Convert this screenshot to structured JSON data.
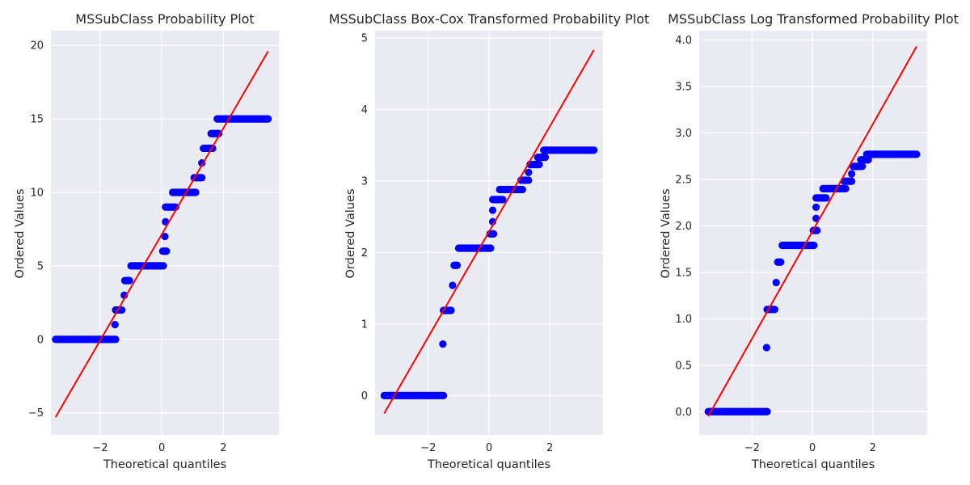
{
  "figure": {
    "background": "#ffffff",
    "panel_background": "#eaeaf2",
    "grid_color": "#ffffff",
    "marker_color": "#0000ff",
    "line_color": "#ff0000"
  },
  "chart_data": [
    {
      "type": "scatter",
      "title": "MSSubClass Probability Plot",
      "xlabel": "Theoretical quantiles",
      "ylabel": "Ordered Values",
      "xlim": [
        -3.6,
        3.8
      ],
      "ylim": [
        -6.5,
        21
      ],
      "xticks": [
        -2,
        0,
        2
      ],
      "yticks": [
        -5,
        0,
        5,
        10,
        15,
        20
      ],
      "grid": true,
      "fit_line": {
        "x": [
          -3.45,
          3.45
        ],
        "y": [
          -5.3,
          19.6
        ]
      },
      "series": [
        {
          "values": [
            {
              "x": -3.45,
              "y": 0
            },
            {
              "x": -2.4,
              "y": 0
            },
            {
              "x": -1.5,
              "y": 0
            },
            {
              "x": -1.52,
              "y": 1
            },
            {
              "x": -1.5,
              "y": 2
            },
            {
              "x": -1.3,
              "y": 2
            },
            {
              "x": -1.22,
              "y": 3
            },
            {
              "x": -1.2,
              "y": 4
            },
            {
              "x": -1.05,
              "y": 4
            },
            {
              "x": -1.0,
              "y": 5
            },
            {
              "x": -0.3,
              "y": 5
            },
            {
              "x": 0.05,
              "y": 5
            },
            {
              "x": 0.03,
              "y": 6
            },
            {
              "x": 0.15,
              "y": 6
            },
            {
              "x": 0.1,
              "y": 7
            },
            {
              "x": 0.12,
              "y": 8
            },
            {
              "x": 0.12,
              "y": 9
            },
            {
              "x": 0.45,
              "y": 9
            },
            {
              "x": 0.35,
              "y": 10
            },
            {
              "x": 1.1,
              "y": 10
            },
            {
              "x": 1.05,
              "y": 11
            },
            {
              "x": 1.3,
              "y": 11
            },
            {
              "x": 1.3,
              "y": 12
            },
            {
              "x": 1.35,
              "y": 13
            },
            {
              "x": 1.65,
              "y": 13
            },
            {
              "x": 1.6,
              "y": 14
            },
            {
              "x": 1.85,
              "y": 14
            },
            {
              "x": 1.8,
              "y": 15
            },
            {
              "x": 2.6,
              "y": 15
            },
            {
              "x": 3.45,
              "y": 15
            }
          ]
        }
      ]
    },
    {
      "type": "scatter",
      "title": "MSSubClass Box-Cox Transformed Probability Plot",
      "xlabel": "Theoretical quantiles",
      "ylabel": "Ordered Values",
      "xlim": [
        -3.75,
        3.75
      ],
      "ylim": [
        -0.55,
        5.1
      ],
      "xticks": [
        -2,
        0,
        2
      ],
      "yticks": [
        0,
        1,
        2,
        3,
        4,
        5
      ],
      "grid": true,
      "fit_line": {
        "x": [
          -3.45,
          3.45
        ],
        "y": [
          -0.25,
          4.83
        ]
      },
      "series": [
        {
          "values": [
            {
              "x": -3.45,
              "y": 0
            },
            {
              "x": -2.4,
              "y": 0
            },
            {
              "x": -1.5,
              "y": 0
            },
            {
              "x": -1.52,
              "y": 0.72
            },
            {
              "x": -1.5,
              "y": 1.19
            },
            {
              "x": -1.25,
              "y": 1.19
            },
            {
              "x": -1.2,
              "y": 1.54
            },
            {
              "x": -1.15,
              "y": 1.82
            },
            {
              "x": -1.05,
              "y": 1.82
            },
            {
              "x": -1.0,
              "y": 2.06
            },
            {
              "x": -0.3,
              "y": 2.06
            },
            {
              "x": 0.05,
              "y": 2.06
            },
            {
              "x": 0.03,
              "y": 2.26
            },
            {
              "x": 0.15,
              "y": 2.26
            },
            {
              "x": 0.12,
              "y": 2.43
            },
            {
              "x": 0.12,
              "y": 2.59
            },
            {
              "x": 0.12,
              "y": 2.74
            },
            {
              "x": 0.45,
              "y": 2.74
            },
            {
              "x": 0.35,
              "y": 2.88
            },
            {
              "x": 1.1,
              "y": 2.88
            },
            {
              "x": 1.05,
              "y": 3.01
            },
            {
              "x": 1.3,
              "y": 3.01
            },
            {
              "x": 1.3,
              "y": 3.12
            },
            {
              "x": 1.35,
              "y": 3.23
            },
            {
              "x": 1.65,
              "y": 3.23
            },
            {
              "x": 1.6,
              "y": 3.33
            },
            {
              "x": 1.85,
              "y": 3.33
            },
            {
              "x": 1.8,
              "y": 3.43
            },
            {
              "x": 2.6,
              "y": 3.43
            },
            {
              "x": 3.45,
              "y": 3.43
            }
          ]
        }
      ]
    },
    {
      "type": "scatter",
      "title": "MSSubClass Log Transformed Probability Plot",
      "xlabel": "Theoretical quantiles",
      "ylabel": "Ordered Values",
      "xlim": [
        -3.75,
        3.8
      ],
      "ylim": [
        -0.25,
        4.1
      ],
      "xticks": [
        -2,
        0,
        2
      ],
      "yticks": [
        0.0,
        0.5,
        1.0,
        1.5,
        2.0,
        2.5,
        3.0,
        3.5,
        4.0
      ],
      "grid": true,
      "fit_line": {
        "x": [
          -3.45,
          3.45
        ],
        "y": [
          -0.05,
          3.93
        ]
      },
      "series": [
        {
          "values": [
            {
              "x": -3.45,
              "y": 0
            },
            {
              "x": -2.4,
              "y": 0
            },
            {
              "x": -1.5,
              "y": 0
            },
            {
              "x": -1.52,
              "y": 0.69
            },
            {
              "x": -1.5,
              "y": 1.1
            },
            {
              "x": -1.25,
              "y": 1.1
            },
            {
              "x": -1.2,
              "y": 1.39
            },
            {
              "x": -1.15,
              "y": 1.61
            },
            {
              "x": -1.05,
              "y": 1.61
            },
            {
              "x": -1.0,
              "y": 1.79
            },
            {
              "x": -0.3,
              "y": 1.79
            },
            {
              "x": 0.05,
              "y": 1.79
            },
            {
              "x": 0.03,
              "y": 1.95
            },
            {
              "x": 0.15,
              "y": 1.95
            },
            {
              "x": 0.12,
              "y": 2.08
            },
            {
              "x": 0.12,
              "y": 2.2
            },
            {
              "x": 0.12,
              "y": 2.3
            },
            {
              "x": 0.45,
              "y": 2.3
            },
            {
              "x": 0.35,
              "y": 2.4
            },
            {
              "x": 1.1,
              "y": 2.4
            },
            {
              "x": 1.05,
              "y": 2.48
            },
            {
              "x": 1.3,
              "y": 2.48
            },
            {
              "x": 1.3,
              "y": 2.56
            },
            {
              "x": 1.35,
              "y": 2.64
            },
            {
              "x": 1.65,
              "y": 2.64
            },
            {
              "x": 1.6,
              "y": 2.71
            },
            {
              "x": 1.85,
              "y": 2.71
            },
            {
              "x": 1.8,
              "y": 2.77
            },
            {
              "x": 2.6,
              "y": 2.77
            },
            {
              "x": 3.45,
              "y": 2.77
            }
          ]
        }
      ]
    }
  ]
}
